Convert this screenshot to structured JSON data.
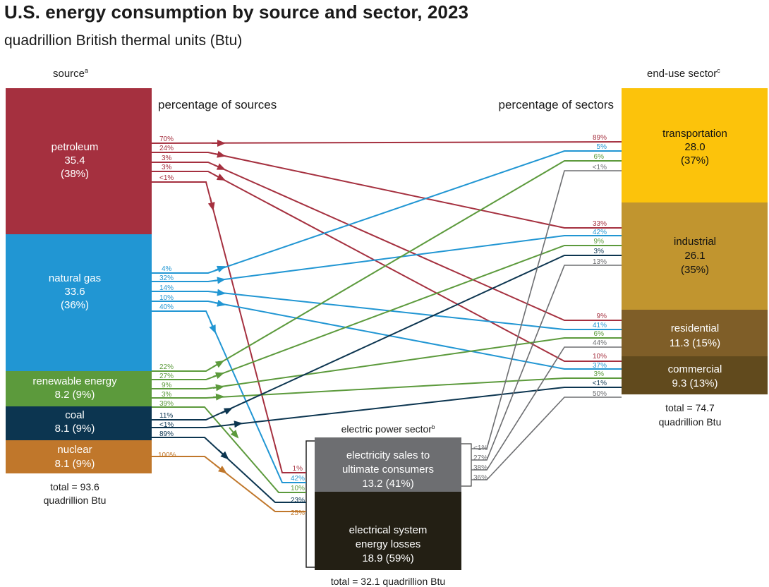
{
  "title": "U.S. energy consumption by source and sector, 2023",
  "subtitle": "quadrillion British thermal units (Btu)",
  "source_header": "source",
  "source_header_sup": "a",
  "sector_header": "end-use sector",
  "sector_header_sup": "c",
  "pct_sources_label": "percentage of sources",
  "pct_sectors_label": "percentage of sectors",
  "colors": {
    "petroleum": "#a5303f",
    "natural_gas": "#2196d3",
    "renewable": "#5c9a3c",
    "coal": "#0c3550",
    "nuclear": "#c0772b",
    "transportation": "#fcc30b",
    "industrial": "#c1952f",
    "residential": "#7f5e28",
    "commercial": "#614a1d",
    "elec_sales": "#6d6e71",
    "elec_losses": "#231f14",
    "gray_flow": "#6d6e71"
  },
  "sources": [
    {
      "id": "petroleum",
      "name": "petroleum",
      "value": "35.4",
      "share": "(38%)"
    },
    {
      "id": "natural_gas",
      "name": "natural gas",
      "value": "33.6",
      "share": "(36%)"
    },
    {
      "id": "renewable",
      "name": "renewable energy",
      "value_line": "8.2 (9%)"
    },
    {
      "id": "coal",
      "name": "coal",
      "value_line": "8.1 (9%)"
    },
    {
      "id": "nuclear",
      "name": "nuclear",
      "value_line": "8.1 (9%)"
    }
  ],
  "source_total": [
    "total = 93.6",
    "quadrillion Btu"
  ],
  "sectors": [
    {
      "id": "transportation",
      "name": "transportation",
      "value": "28.0",
      "share": "(37%)"
    },
    {
      "id": "industrial",
      "name": "industrial",
      "value": "26.1",
      "share": "(35%)"
    },
    {
      "id": "residential",
      "name": "residential",
      "value_line": "11.3 (15%)"
    },
    {
      "id": "commercial",
      "name": "commercial",
      "value_line": "9.3 (13%)"
    }
  ],
  "sector_total": [
    "total = 74.7",
    "quadrillion Btu"
  ],
  "electric": {
    "title": "electric power sector",
    "title_sup": "b",
    "sales": [
      "electricity sales to",
      "ultimate consumers",
      "13.2 (41%)"
    ],
    "losses": [
      "electrical system",
      "energy losses",
      "18.9 (59%)"
    ],
    "total": "total = 32.1 quadrillion Btu"
  },
  "chart_data": {
    "type": "sankey",
    "units": "quadrillion British thermal units (Btu)",
    "sources": {
      "petroleum": 35.4,
      "natural gas": 33.6,
      "renewable energy": 8.2,
      "coal": 8.1,
      "nuclear": 8.1
    },
    "sectors": {
      "transportation": 28.0,
      "industrial": 26.1,
      "residential": 11.3,
      "commercial": 9.3
    },
    "electric_power_sector": {
      "electricity sales to ultimate consumers": 13.2,
      "electrical system energy losses": 18.9
    },
    "flows": [
      {
        "from": "petroleum",
        "to": "transportation",
        "pct_of_source": "70%",
        "pct_of_sector": "89%"
      },
      {
        "from": "petroleum",
        "to": "industrial",
        "pct_of_source": "24%",
        "pct_of_sector": "33%"
      },
      {
        "from": "petroleum",
        "to": "residential",
        "pct_of_source": "3%",
        "pct_of_sector": "9%"
      },
      {
        "from": "petroleum",
        "to": "commercial",
        "pct_of_source": "3%",
        "pct_of_sector": "10%"
      },
      {
        "from": "petroleum",
        "to": "electric power sector",
        "pct_of_source": "<1%",
        "pct_of_electric": "1%"
      },
      {
        "from": "natural gas",
        "to": "transportation",
        "pct_of_source": "4%",
        "pct_of_sector": "5%"
      },
      {
        "from": "natural gas",
        "to": "industrial",
        "pct_of_source": "32%",
        "pct_of_sector": "42%"
      },
      {
        "from": "natural gas",
        "to": "residential",
        "pct_of_source": "14%",
        "pct_of_sector": "41%"
      },
      {
        "from": "natural gas",
        "to": "commercial",
        "pct_of_source": "10%",
        "pct_of_sector": "37%"
      },
      {
        "from": "natural gas",
        "to": "electric power sector",
        "pct_of_source": "40%",
        "pct_of_electric": "42%"
      },
      {
        "from": "renewable energy",
        "to": "transportation",
        "pct_of_source": "22%",
        "pct_of_sector": "6%"
      },
      {
        "from": "renewable energy",
        "to": "industrial",
        "pct_of_source": "27%",
        "pct_of_sector": "9%"
      },
      {
        "from": "renewable energy",
        "to": "residential",
        "pct_of_source": "9%",
        "pct_of_sector": "6%"
      },
      {
        "from": "renewable energy",
        "to": "commercial",
        "pct_of_source": "3%",
        "pct_of_sector": "3%"
      },
      {
        "from": "renewable energy",
        "to": "electric power sector",
        "pct_of_source": "39%",
        "pct_of_electric": "10%"
      },
      {
        "from": "coal",
        "to": "industrial",
        "pct_of_source": "11%",
        "pct_of_sector": "3%"
      },
      {
        "from": "coal",
        "to": "commercial",
        "pct_of_source": "<1%",
        "pct_of_sector": "<1%"
      },
      {
        "from": "coal",
        "to": "electric power sector",
        "pct_of_source": "89%",
        "pct_of_electric": "23%"
      },
      {
        "from": "nuclear",
        "to": "electric power sector",
        "pct_of_source": "100%",
        "pct_of_electric": "25%"
      },
      {
        "from": "electricity sales",
        "to": "transportation",
        "pct_of_electric_sales": "<1%",
        "pct_of_sector": "<1%"
      },
      {
        "from": "electricity sales",
        "to": "industrial",
        "pct_of_electric_sales": "27%",
        "pct_of_sector": "13%"
      },
      {
        "from": "electricity sales",
        "to": "residential",
        "pct_of_electric_sales": "38%",
        "pct_of_sector": "44%"
      },
      {
        "from": "electricity sales",
        "to": "commercial",
        "pct_of_electric_sales": "36%",
        "pct_of_sector": "50%"
      }
    ]
  }
}
